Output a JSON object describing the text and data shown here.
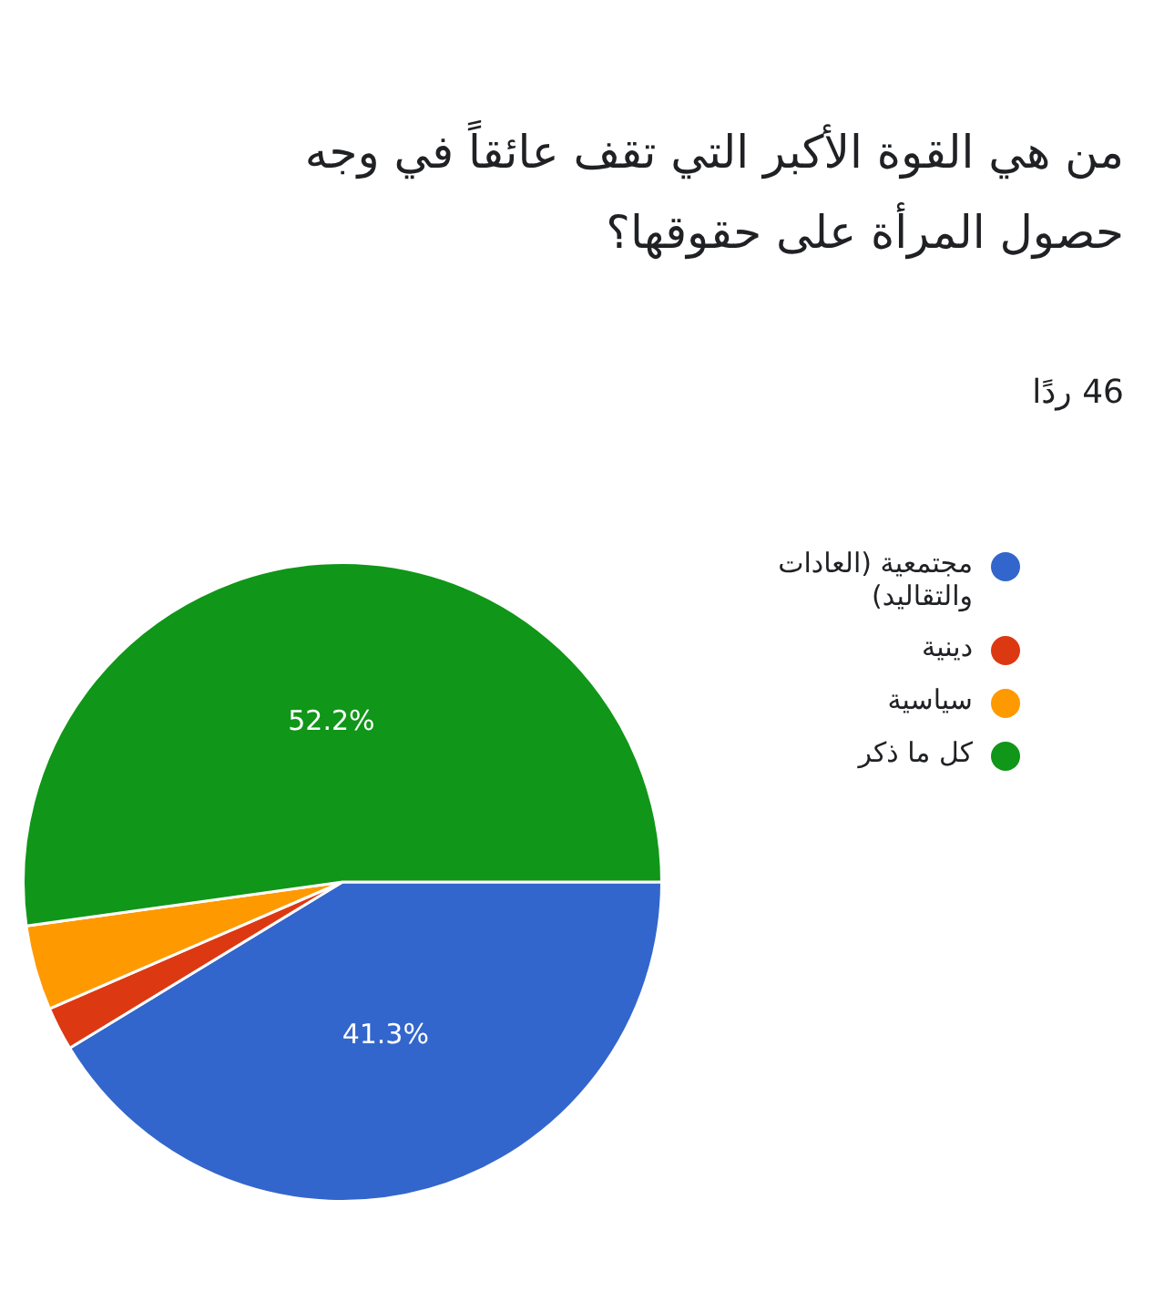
{
  "chart_data": {
    "type": "pie",
    "title": "من هي القوة الأكبر التي تقف عائقاً في وجه حصول المرأة على حقوقها؟",
    "annotations": [
      "46 ردًا"
    ],
    "categories": [
      "مجتمعية (العادات والتقاليد)",
      "دينية",
      "سياسية",
      "كل ما ذكر"
    ],
    "values": [
      41.3,
      2.2,
      4.3,
      52.2
    ],
    "value_labels": [
      "41.3%",
      null,
      null,
      "52.2%"
    ],
    "colors": [
      "#3366cc",
      "#dc3912",
      "#ff9900",
      "#109618"
    ],
    "legend": "right"
  }
}
